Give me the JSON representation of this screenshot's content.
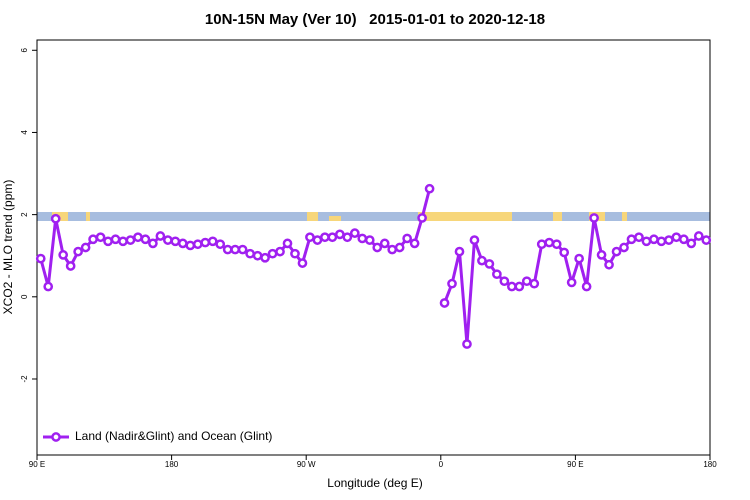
{
  "chart_data": {
    "type": "line",
    "title": "10N-15N May (Ver 10)   2015-01-01 to 2020-12-18",
    "x_label": "Longitude (deg E)",
    "y_label": "XCO2 - MLO trend (ppm)",
    "xlim": [
      90,
      540
    ],
    "ylim": [
      -3.85,
      6.25
    ],
    "xticks": [
      {
        "value": 90,
        "label": "90 E"
      },
      {
        "value": 180,
        "label": "180"
      },
      {
        "value": 270,
        "label": "90 W"
      },
      {
        "value": 360,
        "label": "0"
      },
      {
        "value": 450,
        "label": "90 E"
      },
      {
        "value": 540,
        "label": "180"
      }
    ],
    "yticks": [
      -2,
      0,
      2,
      4,
      6
    ],
    "legend": "bottomleft",
    "x": [
      92.5,
      97.5,
      102.5,
      107.5,
      112.5,
      117.5,
      122.5,
      127.5,
      132.5,
      137.5,
      142.5,
      147.5,
      152.5,
      157.5,
      162.5,
      167.5,
      172.5,
      177.5,
      182.5,
      187.5,
      192.5,
      197.5,
      202.5,
      207.5,
      212.5,
      217.5,
      222.5,
      227.5,
      232.5,
      237.5,
      242.5,
      247.5,
      252.5,
      257.5,
      262.5,
      267.5,
      272.5,
      277.5,
      282.5,
      287.5,
      292.5,
      297.5,
      302.5,
      307.5,
      312.5,
      317.5,
      322.5,
      327.5,
      332.5,
      337.5,
      342.5,
      347.5,
      352.5,
      357.5,
      362.5,
      367.5,
      372.5,
      377.5,
      382.5,
      387.5,
      392.5,
      397.5,
      402.5,
      407.5,
      412.5,
      417.5,
      422.5,
      427.5,
      432.5,
      437.5,
      442.5,
      447.5,
      452.5,
      457.5,
      462.5,
      467.5,
      472.5,
      477.5,
      482.5,
      487.5,
      492.5,
      497.5,
      502.5,
      507.5,
      512.5,
      517.5,
      522.5,
      527.5,
      532.5,
      537.5
    ],
    "series": [
      {
        "name": "Land (Nadir&Glint) and Ocean (Glint)",
        "color": "#a020f0",
        "values": [
          0.93,
          0.25,
          1.9,
          1.02,
          0.75,
          1.1,
          1.2,
          1.4,
          1.45,
          1.35,
          1.4,
          1.35,
          1.38,
          1.45,
          1.4,
          1.3,
          1.48,
          1.38,
          1.35,
          1.3,
          1.25,
          1.28,
          1.32,
          1.35,
          1.28,
          1.15,
          1.15,
          1.15,
          1.05,
          1.0,
          0.95,
          1.05,
          1.1,
          1.3,
          1.05,
          0.82,
          1.45,
          1.38,
          1.45,
          1.45,
          1.52,
          1.45,
          1.55,
          1.42,
          1.38,
          1.2,
          1.3,
          1.15,
          1.2,
          1.42,
          1.3,
          1.92,
          2.63,
          null,
          -0.15,
          0.32,
          1.1,
          -1.15,
          1.38,
          0.88,
          0.8,
          0.55,
          0.38,
          0.25,
          0.25,
          0.38,
          0.32,
          1.28,
          1.32,
          1.28,
          1.08,
          0.35,
          0.93,
          0.25,
          1.92,
          1.02,
          0.78,
          1.1,
          1.2,
          1.4,
          1.45,
          1.35,
          1.4,
          1.35,
          1.38,
          1.45,
          1.4,
          1.3,
          1.48,
          1.38
        ]
      }
    ]
  }
}
